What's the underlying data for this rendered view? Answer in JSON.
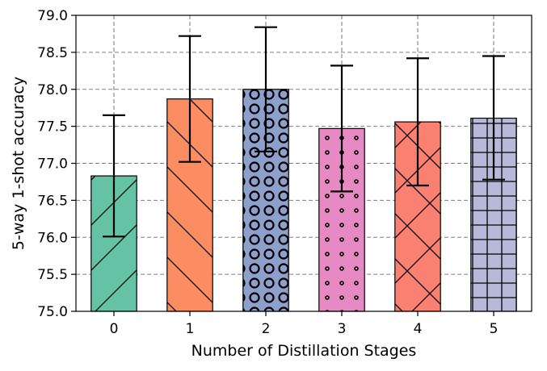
{
  "chart_data": {
    "type": "bar",
    "xlabel": "Number of Distillation Stages",
    "ylabel": "5-way 1-shot accuracy",
    "ylim": [
      75.0,
      79.0
    ],
    "yticks": [
      "75.0",
      "75.5",
      "76.0",
      "76.5",
      "77.0",
      "77.5",
      "78.0",
      "78.5",
      "79.0"
    ],
    "categories": [
      "0",
      "1",
      "2",
      "3",
      "4",
      "5"
    ],
    "values": [
      76.83,
      77.87,
      78.0,
      77.47,
      77.56,
      77.61
    ],
    "error_low": [
      76.01,
      77.02,
      77.16,
      76.62,
      76.7,
      76.78
    ],
    "error_high": [
      77.65,
      78.72,
      78.84,
      78.32,
      78.42,
      78.45
    ],
    "bar_colors": [
      "#66c2a5",
      "#fc8d62",
      "#8da0cb",
      "#e78ac3",
      "#fa8072",
      "#b8b8d9"
    ],
    "hatches": [
      "forward-slash",
      "back-slash",
      "circles",
      "dots",
      "cross",
      "grid"
    ],
    "grid": true
  }
}
